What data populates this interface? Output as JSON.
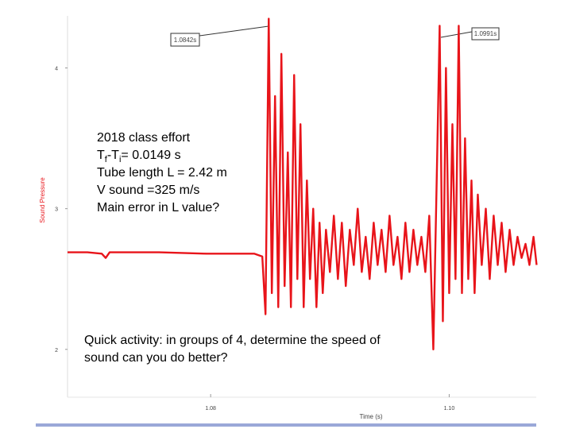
{
  "chart_data": {
    "type": "line",
    "y_label": "Sound Pressure",
    "x_label": "Time (s)",
    "xlim": [
      1.068,
      1.1073
    ],
    "xticks": [
      1.08,
      {
        "value": 1.1,
        "label": "1.10"
      }
    ],
    "ylim": [
      1.66,
      4.37
    ],
    "yticks": [
      2,
      3,
      4
    ],
    "annotations": [
      "1.0842s",
      "1.0991s"
    ],
    "series": [
      {
        "color": "#e8141a",
        "x": [
          1.068,
          1.06967,
          1.07087,
          1.0712,
          1.07153,
          1.07567,
          1.07967,
          1.08367,
          1.08433,
          1.0846,
          1.08487,
          1.08513,
          1.0854,
          1.08567,
          1.08593,
          1.0862,
          1.08647,
          1.08673,
          1.087,
          1.08727,
          1.08753,
          1.0878,
          1.08807,
          1.08833,
          1.0886,
          1.08887,
          1.08913,
          1.0894,
          1.08967,
          1.09,
          1.09033,
          1.09067,
          1.091,
          1.09133,
          1.09167,
          1.092,
          1.09233,
          1.09267,
          1.093,
          1.09333,
          1.09367,
          1.094,
          1.09433,
          1.09467,
          1.095,
          1.09533,
          1.09567,
          1.096,
          1.09633,
          1.09667,
          1.097,
          1.09733,
          1.09767,
          1.098,
          1.09833,
          1.09867,
          1.099,
          1.0992,
          1.09947,
          1.09973,
          1.1,
          1.10027,
          1.10053,
          1.1008,
          1.10107,
          1.10133,
          1.1016,
          1.10187,
          1.10213,
          1.1024,
          1.10273,
          1.10307,
          1.1034,
          1.10373,
          1.10407,
          1.1044,
          1.10473,
          1.10507,
          1.1054,
          1.10573,
          1.10607,
          1.1064,
          1.10673,
          1.10707,
          1.10733
        ],
        "values": [
          2.69,
          2.69,
          2.68,
          2.65,
          2.69,
          2.69,
          2.68,
          2.68,
          2.66,
          2.25,
          4.35,
          2.4,
          3.8,
          2.3,
          4.1,
          2.45,
          3.4,
          2.3,
          3.95,
          2.5,
          3.6,
          2.3,
          3.2,
          2.5,
          3.0,
          2.3,
          2.9,
          2.4,
          2.85,
          2.55,
          2.95,
          2.5,
          2.9,
          2.45,
          2.85,
          2.6,
          3.0,
          2.55,
          2.8,
          2.5,
          2.9,
          2.6,
          2.85,
          2.55,
          2.95,
          2.6,
          2.8,
          2.5,
          2.9,
          2.55,
          2.85,
          2.6,
          2.8,
          2.55,
          2.95,
          2.0,
          3.4,
          4.3,
          2.2,
          4.0,
          2.4,
          3.6,
          2.5,
          4.3,
          2.4,
          3.5,
          2.5,
          3.2,
          2.4,
          3.1,
          2.6,
          3.0,
          2.5,
          2.95,
          2.6,
          2.9,
          2.55,
          2.85,
          2.6,
          2.8,
          2.65,
          2.75,
          2.6,
          2.8,
          2.6
        ]
      }
    ]
  },
  "slide": {
    "box1": {
      "line1": "2018 class effort",
      "line2": [
        "T",
        "f",
        "-T",
        "i",
        "= 0.0149 s"
      ],
      "line3": "Tube length L = 2.42 m",
      "line4": "V sound =325 m/s",
      "line5": "Main error in L value?"
    },
    "box2": [
      "Quick activity: in groups of 4, determine the speed of",
      "sound can you do better?"
    ]
  }
}
